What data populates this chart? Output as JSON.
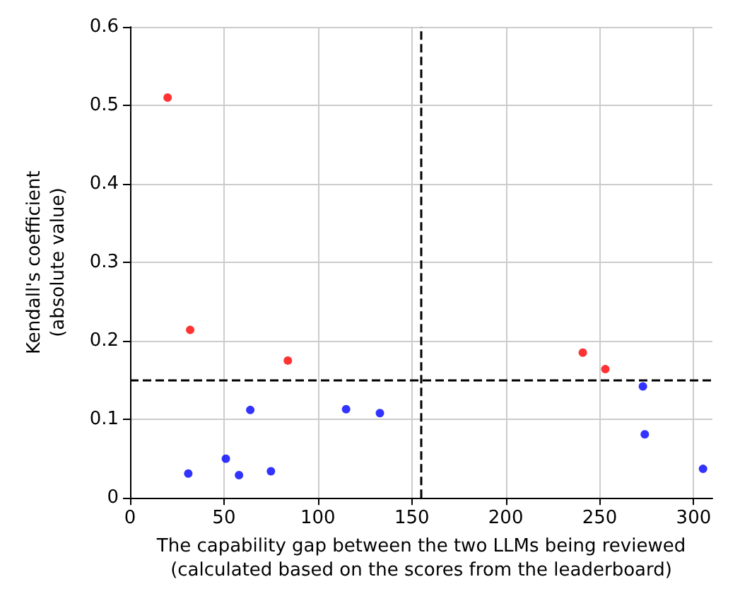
{
  "chart_data": {
    "type": "scatter",
    "xlabel": "The capability gap between the two LLMs being reviewed\n(calculated based on the scores from the leaderboard)",
    "ylabel": "Kendall's coefficient\n(absolute value)",
    "series": [
      {
        "color": "#ff0000",
        "x": [
          20,
          32,
          84,
          241,
          253
        ],
        "values": [
          0.51,
          0.214,
          0.175,
          0.185,
          0.164
        ]
      },
      {
        "color": "#0000ff",
        "x": [
          31,
          51,
          58,
          64,
          75,
          115,
          133,
          273,
          274,
          305
        ],
        "values": [
          0.031,
          0.05,
          0.029,
          0.112,
          0.034,
          0.113,
          0.108,
          0.142,
          0.081,
          0.037
        ]
      }
    ],
    "xlim": [
      0,
      310
    ],
    "xticks": [
      0,
      50,
      100,
      150,
      200,
      250,
      300
    ],
    "ylim": [
      0,
      0.6
    ],
    "yticks": [
      0,
      0.1,
      0.2,
      0.3,
      0.4,
      0.5,
      0.6
    ],
    "ref_lines": [
      {
        "axis": "x",
        "value": 155,
        "color": "#000000",
        "line_style": "dashed"
      },
      {
        "axis": "y",
        "value": 0.15,
        "color": "#000000",
        "line_style": "dashed"
      }
    ],
    "grid": true,
    "marker": "circle"
  }
}
